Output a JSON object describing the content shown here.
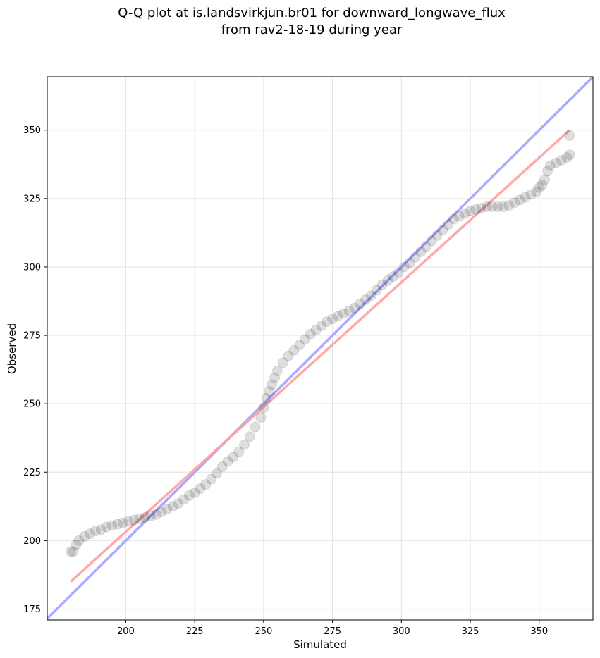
{
  "chart_data": {
    "type": "scatter",
    "title_lines": [
      "Q-Q plot at is.landsvirkjun.br01 for downward_longwave_flux",
      "from rav2-18-19 during year"
    ],
    "xlabel": "Simulated",
    "ylabel": "Observed",
    "xlim": [
      171.5,
      369.5
    ],
    "ylim": [
      171,
      369.5
    ],
    "x_ticks": [
      200,
      225,
      250,
      275,
      300,
      325,
      350
    ],
    "y_ticks": [
      175,
      200,
      225,
      250,
      275,
      300,
      325,
      350
    ],
    "grid": true,
    "colors": {
      "points": "#000000",
      "identity_line": "#aaaaff",
      "fit_line": "#ffa0a0",
      "overlap_line": "#9966cc",
      "grid": "#e6e6e6"
    },
    "identity_line": {
      "from": [
        171.5,
        171.5
      ],
      "to": [
        369.5,
        369.5
      ]
    },
    "fit_line": {
      "from": [
        180,
        185
      ],
      "to": [
        361,
        350
      ]
    },
    "series": [
      {
        "name": "quantiles",
        "points": [
          [
            180,
            196
          ],
          [
            181,
            196
          ],
          [
            182,
            198.5
          ],
          [
            183,
            200
          ],
          [
            185,
            201.5
          ],
          [
            187,
            202.5
          ],
          [
            189,
            203.5
          ],
          [
            191,
            204
          ],
          [
            193,
            205
          ],
          [
            195,
            205.5
          ],
          [
            197,
            206
          ],
          [
            199,
            206.5
          ],
          [
            201,
            207
          ],
          [
            203,
            207.5
          ],
          [
            205,
            208
          ],
          [
            207,
            208.5
          ],
          [
            209,
            209
          ],
          [
            211,
            209.5
          ],
          [
            213,
            210.5
          ],
          [
            215,
            211.5
          ],
          [
            217,
            212.5
          ],
          [
            219,
            213.5
          ],
          [
            221,
            215
          ],
          [
            223,
            216.5
          ],
          [
            225,
            217.5
          ],
          [
            227,
            219
          ],
          [
            229,
            220.5
          ],
          [
            231,
            222.5
          ],
          [
            233,
            224.5
          ],
          [
            235,
            227
          ],
          [
            237,
            229
          ],
          [
            239,
            230.5
          ],
          [
            241,
            232.5
          ],
          [
            243,
            235
          ],
          [
            245,
            238
          ],
          [
            247,
            241.5
          ],
          [
            249,
            245
          ],
          [
            250,
            248.5
          ],
          [
            251,
            252
          ],
          [
            252,
            254.5
          ],
          [
            253,
            257
          ],
          [
            254,
            259.5
          ],
          [
            255,
            262
          ],
          [
            257,
            265
          ],
          [
            259,
            267.5
          ],
          [
            261,
            269.5
          ],
          [
            263,
            271.5
          ],
          [
            265,
            273.5
          ],
          [
            267,
            275.5
          ],
          [
            269,
            277
          ],
          [
            271,
            278.5
          ],
          [
            273,
            280
          ],
          [
            275,
            281
          ],
          [
            277,
            282
          ],
          [
            279,
            283
          ],
          [
            281,
            284
          ],
          [
            283,
            285
          ],
          [
            285,
            286.5
          ],
          [
            287,
            288
          ],
          [
            289,
            289.5
          ],
          [
            291,
            291.5
          ],
          [
            293,
            293.5
          ],
          [
            295,
            295
          ],
          [
            297,
            296.5
          ],
          [
            299,
            298
          ],
          [
            301,
            300
          ],
          [
            303,
            301.5
          ],
          [
            305,
            303.5
          ],
          [
            307,
            305.5
          ],
          [
            309,
            307.5
          ],
          [
            311,
            309.5
          ],
          [
            313,
            311.5
          ],
          [
            315,
            313.5
          ],
          [
            317,
            315.5
          ],
          [
            319,
            317.5
          ],
          [
            321,
            318.5
          ],
          [
            323,
            319.5
          ],
          [
            325,
            320.5
          ],
          [
            327,
            321
          ],
          [
            329,
            321.5
          ],
          [
            331,
            322
          ],
          [
            333,
            322
          ],
          [
            335,
            322
          ],
          [
            337,
            322
          ],
          [
            339,
            322.5
          ],
          [
            341,
            323.5
          ],
          [
            343,
            324.5
          ],
          [
            345,
            325.5
          ],
          [
            347,
            326.5
          ],
          [
            349,
            327.5
          ],
          [
            350,
            329
          ],
          [
            351,
            330
          ],
          [
            352,
            332
          ],
          [
            353,
            335
          ],
          [
            354,
            337
          ],
          [
            356,
            338
          ],
          [
            358,
            339
          ],
          [
            360,
            340
          ],
          [
            361,
            341
          ],
          [
            361,
            348
          ]
        ]
      }
    ]
  }
}
